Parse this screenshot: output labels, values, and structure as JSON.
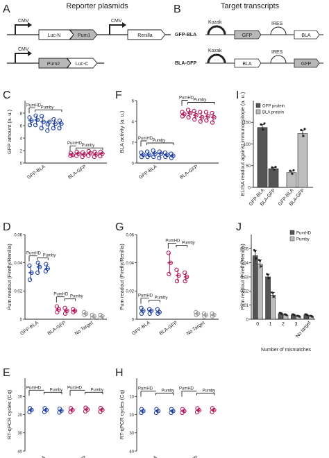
{
  "panelA": {
    "letter": "A",
    "title": "Reporter plasmids",
    "cmv": "CMV",
    "construct1": [
      "Luc-N",
      "Pum1",
      "Renilla"
    ],
    "construct2": [
      "Pum2",
      "Luc-C"
    ]
  },
  "panelB": {
    "letter": "B",
    "title": "Target transcripts",
    "rows": [
      {
        "label": "GFP-BLA",
        "kozak": "Kozak",
        "ires": "IRES",
        "box1": "GFP",
        "box2": "BLA"
      },
      {
        "label": "BLA-GFP",
        "kozak": "Kozak",
        "ires": "IRES",
        "box1": "BLA",
        "box2": "GFP"
      }
    ]
  },
  "labels": {
    "pumhd": "PumHD",
    "pumby": "Pumby",
    "gfp_bla": "GFP-BLA",
    "bla_gfp": "BLA-GFP",
    "no_target": "No Target",
    "num_mismatches": "Number of mismatches"
  },
  "colors": {
    "blue": "#1f3fa6",
    "magenta": "#b3175a",
    "grey": "#999999",
    "darkbar": "#555555",
    "lightbar": "#bdbdbd"
  },
  "chart_data": [
    {
      "id": "C",
      "type": "scatter",
      "letter": "C",
      "ylabel": "GFP amount  (a. u.)",
      "ylim": [
        0,
        10
      ],
      "yticks": [
        0,
        2,
        4,
        6,
        8
      ],
      "groups": [
        {
          "color": "blue",
          "pumhd": [
            6.8,
            6.1,
            7.3
          ],
          "pumby": [
            [
              6.9,
              7.6,
              6.1
            ],
            [
              6.6,
              7.5,
              5.6
            ],
            [
              6.6,
              6.2,
              5.2
            ],
            [
              6.3,
              7.0,
              5.6
            ],
            [
              6.3,
              6.8,
              5.6
            ]
          ]
        },
        {
          "color": "magenta",
          "pumhd": [
            1.3,
            1.6,
            1.2
          ],
          "pumby": [
            [
              1.5,
              1.8,
              1.2
            ],
            [
              1.4,
              1.7,
              1.0
            ],
            [
              1.6,
              1.9,
              1.2
            ],
            [
              1.4,
              1.8,
              1.0
            ],
            [
              1.5,
              1.8,
              1.1
            ]
          ]
        }
      ],
      "xlabels": [
        "GFP-BLA",
        "BLA-GFP"
      ]
    },
    {
      "id": "F",
      "type": "scatter",
      "letter": "F",
      "ylabel": "BLA activity  (a. u.)",
      "ylim": [
        0,
        6
      ],
      "yticks": [
        0,
        2,
        4,
        6
      ],
      "groups": [
        {
          "color": "blue",
          "pumhd": [
            0.8,
            0.6,
            1.0
          ],
          "pumby": [
            [
              0.8,
              0.6,
              1.1
            ],
            [
              0.9,
              0.6,
              1.2
            ],
            [
              0.9,
              1.1,
              0.5
            ],
            [
              0.8,
              0.6,
              1.0
            ],
            [
              0.7,
              0.5,
              0.9
            ]
          ]
        },
        {
          "color": "magenta",
          "pumhd": [
            4.7,
            4.5,
            4.9
          ],
          "pumby": [
            [
              4.8,
              4.4,
              5.1
            ],
            [
              4.6,
              4.2,
              5.0
            ],
            [
              4.4,
              4.0,
              4.9
            ],
            [
              4.5,
              4.1,
              4.9
            ],
            [
              4.4,
              3.9,
              4.8
            ]
          ]
        }
      ],
      "xlabels": [
        "GFP-BLA",
        "BLA-GFP"
      ]
    },
    {
      "id": "I",
      "type": "bar",
      "letter": "I",
      "ylabel": "ELISA readout against immunoepitope (a. u.)",
      "ylim": [
        0,
        200
      ],
      "yticks": [
        0,
        50,
        100,
        150
      ],
      "categories": [
        "GFP-BLA",
        "BLA-GFP",
        "GFP-BLA",
        "BLA-GFP"
      ],
      "series": [
        {
          "name": "GFP protein",
          "color": "darkbar",
          "values": [
            138,
            43,
            null,
            null
          ],
          "err": [
            7,
            3
          ]
        },
        {
          "name": "BLA protein",
          "color": "lightbar",
          "values": [
            null,
            null,
            34,
            124
          ],
          "err": [
            4,
            8
          ]
        }
      ],
      "legend": "top-left"
    },
    {
      "id": "D",
      "type": "scatter",
      "letter": "D",
      "ylabel": "Pum readout (Firefly/Renilla)",
      "ylim": [
        0,
        0.06
      ],
      "yticks": [
        0,
        0.02,
        0.04,
        0.06
      ],
      "groups": [
        {
          "color": "blue",
          "pumhd": [
            0.033,
            0.028,
            0.038
          ],
          "pumby": [
            [
              0.037,
              0.04,
              0.033
            ],
            [
              0.036,
              0.039,
              0.034
            ]
          ]
        },
        {
          "color": "magenta",
          "pumhd": [
            0.007,
            0.005,
            0.009
          ],
          "pumby": [
            [
              0.006,
              0.004,
              0.008
            ],
            [
              0.006,
              0.005,
              0.007
            ]
          ]
        },
        {
          "color": "grey",
          "pumhd": [
            0.004,
            0.003,
            0.005
          ],
          "pumby": [
            [
              0.002,
              0.001,
              0.003
            ],
            [
              0.002,
              0.001,
              0.003
            ]
          ]
        }
      ],
      "xlabels": [
        "GFP-BLA",
        "BLA-GFP",
        "No Target"
      ]
    },
    {
      "id": "G",
      "type": "scatter",
      "letter": "G",
      "ylabel": "Pum readout (Firefly/Renilla)",
      "ylim": [
        0,
        0.06
      ],
      "yticks": [
        0,
        0.02,
        0.04,
        0.06
      ],
      "groups": [
        {
          "color": "blue",
          "pumhd": [
            0.006,
            0.004,
            0.008
          ],
          "pumby": [
            [
              0.006,
              0.004,
              0.007
            ],
            [
              0.005,
              0.004,
              0.007
            ]
          ]
        },
        {
          "color": "magenta",
          "pumhd": [
            0.04,
            0.032,
            0.047
          ],
          "pumby": [
            [
              0.031,
              0.027,
              0.035
            ],
            [
              0.03,
              0.027,
              0.033
            ]
          ]
        },
        {
          "color": "grey",
          "pumhd": [
            0.004,
            0.003,
            0.005
          ],
          "pumby": [
            [
              0.003,
              0.002,
              0.004
            ],
            [
              0.003,
              0.002,
              0.004
            ]
          ]
        }
      ],
      "xlabels": [
        "GFP-BLA",
        "BLA-GFP",
        "No Target"
      ]
    },
    {
      "id": "J",
      "type": "bar",
      "letter": "J",
      "ylabel": "Pum readout (Firefly/Renilla)",
      "ylim": [
        0,
        0.06
      ],
      "yticks": [
        0,
        0.01,
        0.02,
        0.03,
        0.04,
        0.05
      ],
      "categories": [
        "0",
        "1",
        "2",
        "3",
        "No target"
      ],
      "xlabel": "Number of mismatches",
      "series": [
        {
          "name": "PumHD",
          "color": "darkbar",
          "values": [
            0.045,
            0.03,
            0.004,
            0.003,
            0.003
          ],
          "err": [
            0.004,
            0.002,
            0.0005,
            0.0005,
            0.0005
          ]
        },
        {
          "name": "Pumby",
          "color": "lightbar",
          "values": [
            0.039,
            0.017,
            0.003,
            0.002,
            0.002
          ],
          "err": [
            0.003,
            0.002,
            0.0005,
            0.0005,
            0.0005
          ]
        }
      ],
      "legend": "top-right"
    },
    {
      "id": "E",
      "type": "scatter",
      "letter": "E",
      "reverse": true,
      "ylabel": "RT-qPCR cycles (Cq)",
      "ylim": [
        0,
        40
      ],
      "yticks": [
        10,
        20,
        30,
        40
      ],
      "groups": [
        {
          "color": "blue",
          "pumhd": [
            17.5,
            16.5,
            18.5
          ],
          "pumby": [
            [
              17.5,
              16.5,
              18.5
            ],
            [
              17.8,
              16.8,
              18.8
            ]
          ]
        },
        {
          "color": "magenta",
          "pumhd": [
            17.5,
            16.5,
            18.5
          ],
          "pumby": [
            [
              17.2,
              16.2,
              18.2
            ],
            [
              17.4,
              16.4,
              18.4
            ]
          ]
        }
      ],
      "xlabels": [
        "GFP-BLA",
        "BLA-GFP"
      ]
    },
    {
      "id": "H",
      "type": "scatter",
      "letter": "H",
      "reverse": true,
      "ylabel": "RT-qPCR cycles (Cq)",
      "ylim": [
        0,
        40
      ],
      "yticks": [
        10,
        20,
        30,
        40
      ],
      "groups": [
        {
          "color": "blue",
          "pumhd": [
            18.0,
            17.0,
            19.0
          ],
          "pumby": [
            [
              18.0,
              17.0,
              19.0
            ],
            [
              18.0,
              17.0,
              19.0
            ]
          ]
        },
        {
          "color": "magenta",
          "pumhd": [
            18.0,
            17.0,
            19.0
          ],
          "pumby": [
            [
              17.6,
              16.6,
              18.6
            ],
            [
              17.5,
              16.5,
              18.5
            ]
          ]
        }
      ],
      "xlabels": [
        "GFP-BLA",
        "BLA-GFP"
      ]
    }
  ]
}
